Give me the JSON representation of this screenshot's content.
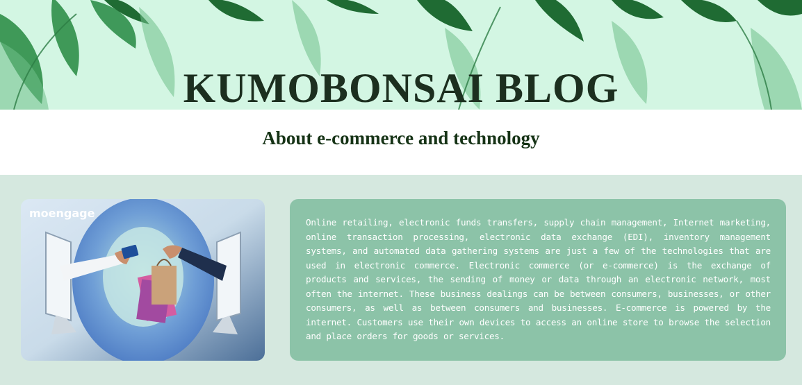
{
  "header": {
    "title": "KUMOBONSAI BLOG",
    "subtitle": "About e-commerce and technology"
  },
  "image": {
    "brand_text": "moengage",
    "colors": {
      "bg_blue": "#5b86c8",
      "bag_tan": "#c89f74",
      "bag_pink": "#c75b97"
    }
  },
  "article": {
    "body": "Online retailing, electronic funds transfers, supply chain management, Internet marketing, online transaction processing, electronic data exchange (EDI), inventory management systems, and automated data gathering systems are just a few of the technologies that are used in electronic commerce. Electronic commerce (or e-commerce) is the exchange of products and services, the sending of money or data through an electronic network, most often the internet. These business dealings can be between consumers, businesses, or other consumers, as well as between consumers and businesses. E-commerce is powered by the internet. Customers use their own devices to access an online store to browse the selection and place orders for goods or services."
  },
  "colors": {
    "page_bg": "#d5e8df",
    "banner_bg": "#d3f6e3",
    "card_bg": "#8cc3a8",
    "title_color": "#1c2f1f"
  }
}
